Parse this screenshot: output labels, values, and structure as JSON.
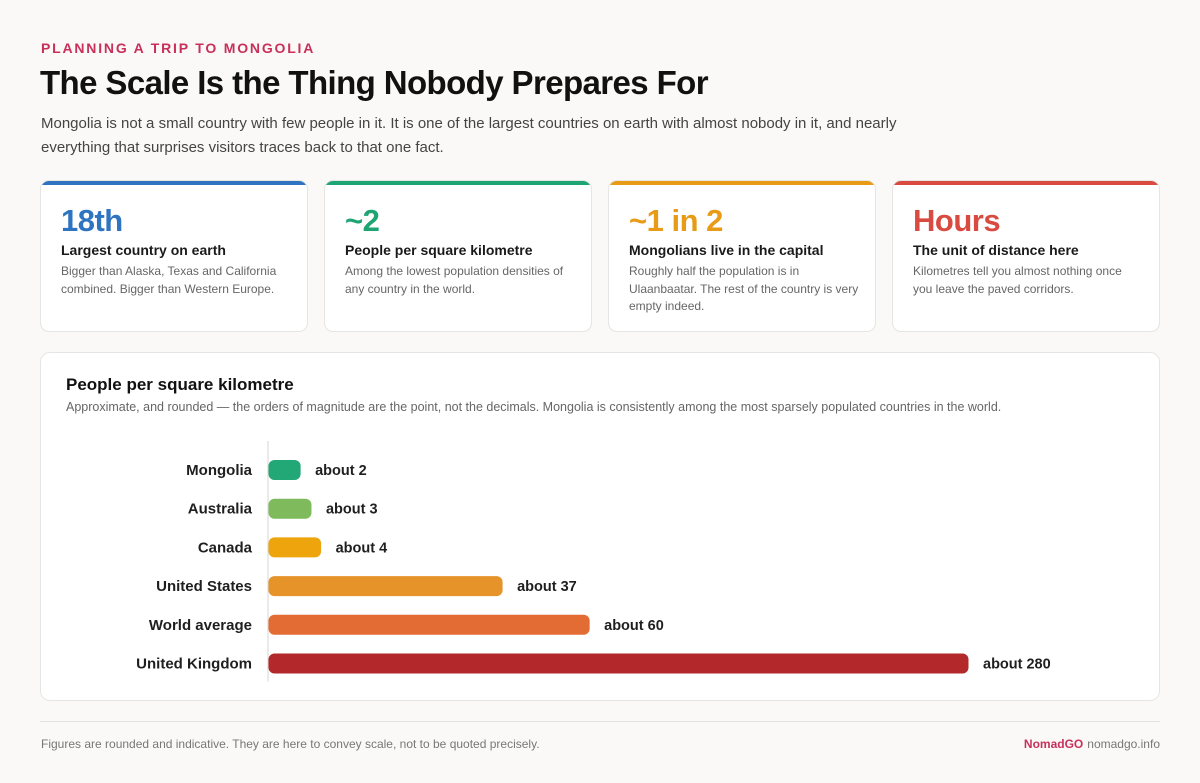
{
  "header": {
    "eyebrow": "PLANNING A TRIP TO MONGOLIA",
    "title": "The Scale Is the Thing Nobody Prepares For",
    "lede": "Mongolia is not a small country with few people in it. It is one of the largest countries on earth with almost nobody in it, and nearly everything that surprises visitors traces back to that one fact."
  },
  "stats": [
    {
      "value": "18th",
      "label": "Largest country on earth",
      "desc": "Bigger than Alaska, Texas and California combined. Bigger than Western Europe.",
      "color": "#2f74c0"
    },
    {
      "value": "~2",
      "label": "People per square kilometre",
      "desc": "Among the lowest population densities of any country in the world.",
      "color": "#1fa574"
    },
    {
      "value": "~1 in 2",
      "label": "Mongolians live in the capital",
      "desc": "Roughly half the population is in Ulaanbaatar. The rest of the country is very empty indeed.",
      "color": "#e89b16"
    },
    {
      "value": "Hours",
      "label": "The unit of distance here",
      "desc": "Kilometres tell you almost nothing once you leave the paved corridors.",
      "color": "#d94a40"
    }
  ],
  "chart_data": {
    "type": "bar",
    "orientation": "horizontal",
    "title": "People per square kilometre",
    "subtitle": "Approximate, and rounded — the orders of magnitude are the point, not the decimals. Mongolia is consistently among the most sparsely populated countries in the world.",
    "categories": [
      "Mongolia",
      "Australia",
      "Canada",
      "United States",
      "World average",
      "United Kingdom"
    ],
    "values": [
      2,
      3,
      4,
      37,
      60,
      280
    ],
    "value_labels": [
      "about 2",
      "about 3",
      "about 4",
      "about 37",
      "about 60",
      "about 280"
    ],
    "colors": [
      "#22a877",
      "#7fba5c",
      "#eea50d",
      "#e6932a",
      "#e36c35",
      "#b2282b"
    ],
    "scale": "non-linear"
  },
  "footer": {
    "note": "Figures are rounded and indicative. They are here to convey scale, not to be quoted precisely.",
    "brand": "NomadGO",
    "site": "nomadgo.info"
  }
}
